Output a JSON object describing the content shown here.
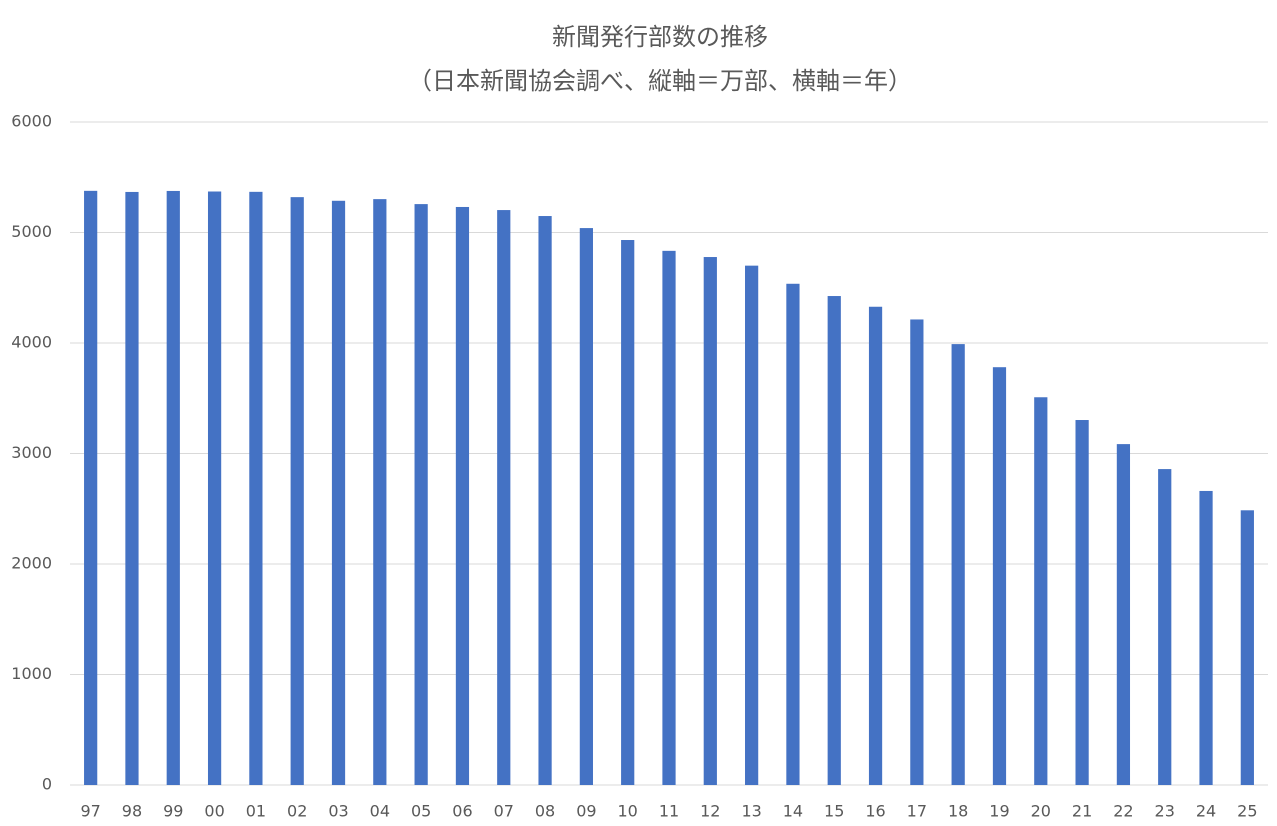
{
  "chart_data": {
    "type": "bar",
    "title": "新聞発行部数の推移",
    "subtitle": "（日本新聞協会調べ、縦軸＝万部、横軸＝年）",
    "categories": [
      "97",
      "98",
      "99",
      "00",
      "01",
      "02",
      "03",
      "04",
      "05",
      "06",
      "07",
      "08",
      "09",
      "10",
      "11",
      "12",
      "13",
      "14",
      "15",
      "16",
      "17",
      "18",
      "19",
      "20",
      "21",
      "22",
      "23",
      "24",
      "25"
    ],
    "values": [
      5377,
      5367,
      5376,
      5371,
      5368,
      5320,
      5287,
      5302,
      5257,
      5231,
      5203,
      5149,
      5040,
      4932,
      4834,
      4778,
      4700,
      4536,
      4425,
      4328,
      4213,
      3990,
      3781,
      3509,
      3303,
      3085,
      2859,
      2661,
      2486
    ],
    "color": "#4472c4",
    "ylim": [
      0,
      6000
    ],
    "yticks": [
      0,
      1000,
      2000,
      3000,
      4000,
      5000,
      6000
    ],
    "grid": true
  }
}
